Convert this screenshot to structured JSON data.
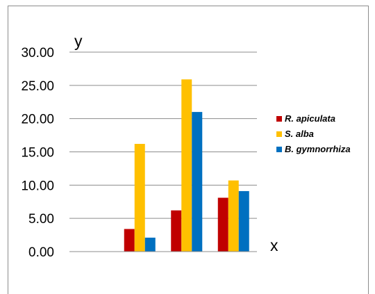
{
  "chart_data": {
    "type": "bar",
    "title": "",
    "xlabel": "x",
    "ylabel": "y",
    "ylim": [
      0,
      30
    ],
    "yticks": [
      "0.00",
      "5.00",
      "10.00",
      "15.00",
      "20.00",
      "25.00",
      "30.00"
    ],
    "categories": [
      "",
      "",
      "",
      ""
    ],
    "series": [
      {
        "name": "R. apiculata",
        "color": "#c00000",
        "values": [
          0,
          3.4,
          6.2,
          8.1
        ]
      },
      {
        "name": "S. alba",
        "color": "#ffc000",
        "values": [
          0,
          16.2,
          25.9,
          10.7
        ]
      },
      {
        "name": "B. gymnorrhiza",
        "color": "#0070c0",
        "values": [
          0,
          2.1,
          21.0,
          9.1
        ]
      }
    ],
    "grid": true,
    "legend_position": "right"
  }
}
